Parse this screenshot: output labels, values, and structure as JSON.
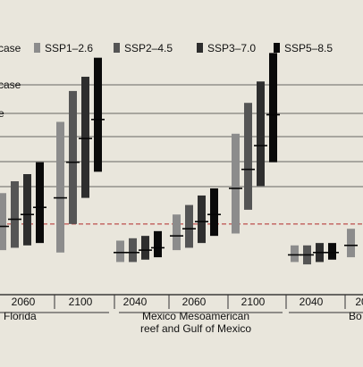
{
  "chart_data": {
    "type": "bar",
    "title": "",
    "xlabel": "",
    "ylabel": "",
    "legend_position": "top",
    "legend": [
      {
        "label": "case",
        "color": "#e9e6dc",
        "swatch": false
      },
      {
        "label": "SSP1–2.6",
        "color": "#8c8c8c",
        "swatch": true
      },
      {
        "label": "SSP2–4.5",
        "color": "#555555",
        "swatch": true
      },
      {
        "label": "SSP3–7.0",
        "color": "#2e2e2e",
        "swatch": true
      },
      {
        "label": "SSP5–8.5",
        "color": "#0a0a0a",
        "swatch": true
      }
    ],
    "axis_annotations": [
      "case",
      "e"
    ],
    "y_range": [
      0,
      100
    ],
    "baseline_value": 29,
    "regions": [
      {
        "label_lines": [
          "Florida"
        ],
        "groups": [
          {
            "year": "2060",
            "bars": [
              [
                18,
                42,
                28
              ],
              [
                19,
                47,
                31
              ],
              [
                20,
                50,
                33
              ],
              [
                21,
                55,
                36
              ]
            ]
          },
          {
            "year": "2100",
            "bars": [
              [
                17,
                72,
                40
              ],
              [
                29,
                85,
                55
              ],
              [
                40,
                91,
                65
              ],
              [
                51,
                99,
                73
              ]
            ]
          }
        ]
      },
      {
        "label_lines": [
          "Mexico Mesoamerican",
          "reef and Gulf of Mexico"
        ],
        "groups": [
          {
            "year": "2040",
            "bars": [
              [
                13,
                22,
                17
              ],
              [
                13,
                23,
                17
              ],
              [
                14,
                24,
                18
              ],
              [
                15,
                26,
                19
              ]
            ]
          },
          {
            "year": "2060",
            "bars": [
              [
                18,
                33,
                24
              ],
              [
                19,
                37,
                27
              ],
              [
                21,
                41,
                30
              ],
              [
                24,
                44,
                33
              ]
            ]
          },
          {
            "year": "2100",
            "bars": [
              [
                25,
                67,
                44
              ],
              [
                35,
                80,
                52
              ],
              [
                45,
                89,
                62
              ],
              [
                55,
                101,
                75
              ]
            ]
          }
        ]
      },
      {
        "label_lines": [
          "Bo"
        ],
        "groups": [
          {
            "year": "2040",
            "bars": [
              [
                13,
                20,
                16
              ],
              [
                12,
                20,
                16
              ],
              [
                13,
                21,
                17
              ],
              [
                14,
                21,
                17
              ]
            ]
          },
          {
            "year": "20",
            "bars": [
              [
                15,
                27,
                20
              ]
            ]
          }
        ]
      }
    ]
  }
}
